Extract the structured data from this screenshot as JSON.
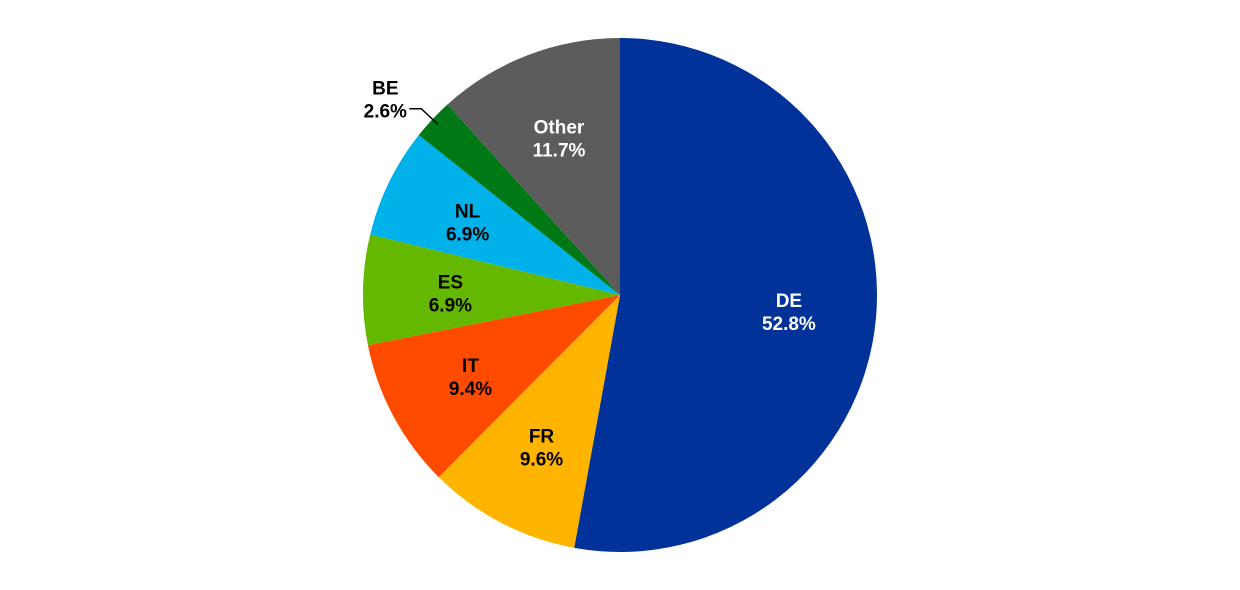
{
  "chart_data": {
    "type": "pie",
    "title": "",
    "legend": "none",
    "start_angle_deg": 0,
    "direction": "clockwise",
    "slices": [
      {
        "label": "DE",
        "value": 52.8,
        "value_label": "52.8%",
        "color": "#003299",
        "text_color": "#ffffff"
      },
      {
        "label": "FR",
        "value": 9.6,
        "value_label": "9.6%",
        "color": "#ffb400",
        "text_color": "#000000"
      },
      {
        "label": "IT",
        "value": 9.4,
        "value_label": "9.4%",
        "color": "#ff4b00",
        "text_color": "#000000"
      },
      {
        "label": "ES",
        "value": 6.9,
        "value_label": "6.9%",
        "color": "#65b800",
        "text_color": "#000000"
      },
      {
        "label": "NL",
        "value": 6.9,
        "value_label": "6.9%",
        "color": "#00b1ea",
        "text_color": "#000000"
      },
      {
        "label": "BE",
        "value": 2.6,
        "value_label": "2.6%",
        "color": "#007816",
        "text_color": "#000000",
        "label_outside": true
      },
      {
        "label": "Other",
        "value": 11.7,
        "value_label": "11.7%",
        "color": "#5c5c5c",
        "text_color": "#ffffff"
      }
    ]
  }
}
